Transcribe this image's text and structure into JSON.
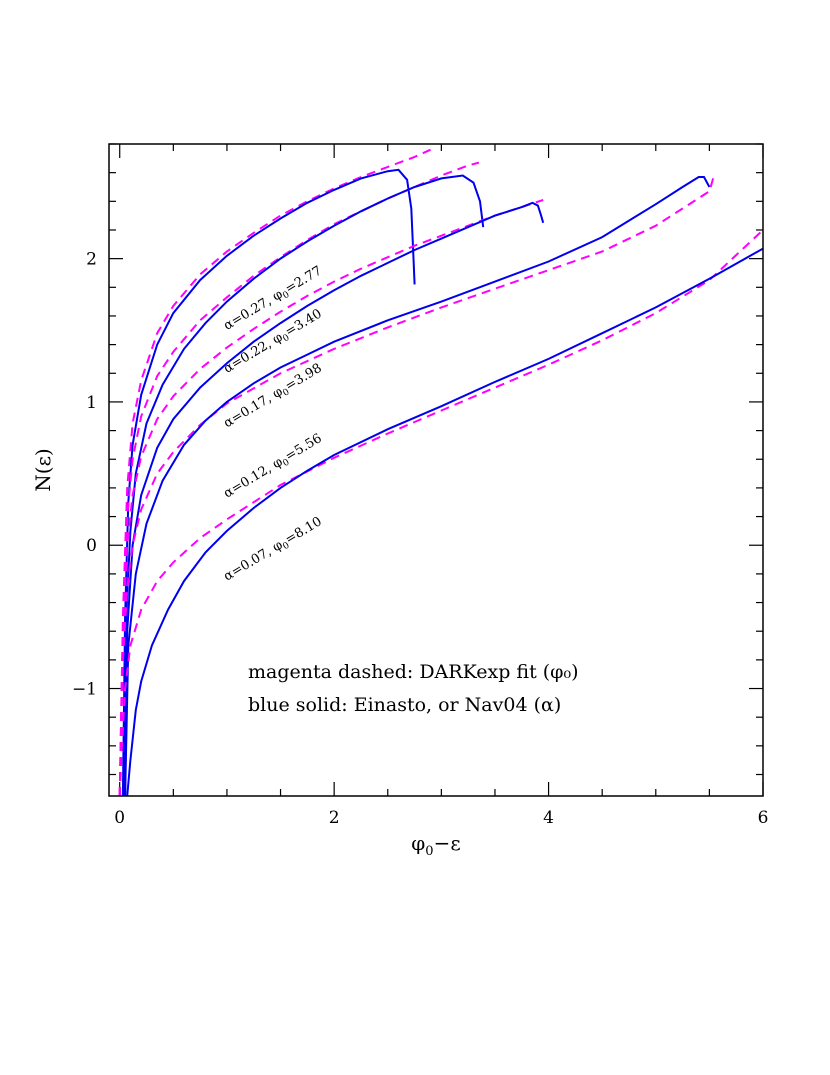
{
  "chart_data": {
    "type": "line",
    "xlabel": {
      "base": "φ",
      "sub": "0",
      "rest": "−ε"
    },
    "ylabel": "N(ε)",
    "xlim": [
      -0.1,
      6.0
    ],
    "ylim": [
      -1.75,
      2.8
    ],
    "x_ticks": [
      0,
      2,
      4,
      6
    ],
    "y_ticks": [
      -1,
      0,
      1,
      2
    ],
    "x_tick_labels": [
      "0",
      "2",
      "4",
      "6"
    ],
    "y_tick_labels": [
      "−1",
      "0",
      "1",
      "2"
    ],
    "x_minor_step": 0.5,
    "y_minor_step": 0.2,
    "colors": {
      "einasto": "#0000ee",
      "darkexp": "#ff00ff"
    },
    "annotations": [
      "magenta dashed: DARKexp fit (φ₀)",
      "blue solid: Einasto, or Nav04 (α)"
    ],
    "series": [
      {
        "label": {
          "alpha": "α=0.27, ",
          "phi": "φ",
          "sub": "0",
          "value": "=2.77"
        },
        "label_anchor": [
          1.0,
          1.5
        ],
        "einasto": [
          [
            0.03,
            -1.75
          ],
          [
            0.05,
            -0.5
          ],
          [
            0.08,
            0.3
          ],
          [
            0.12,
            0.7
          ],
          [
            0.2,
            1.05
          ],
          [
            0.35,
            1.4
          ],
          [
            0.5,
            1.62
          ],
          [
            0.75,
            1.85
          ],
          [
            1.0,
            2.02
          ],
          [
            1.25,
            2.16
          ],
          [
            1.5,
            2.28
          ],
          [
            1.75,
            2.39
          ],
          [
            2.0,
            2.48
          ],
          [
            2.25,
            2.56
          ],
          [
            2.5,
            2.61
          ],
          [
            2.6,
            2.62
          ],
          [
            2.68,
            2.55
          ],
          [
            2.72,
            2.35
          ],
          [
            2.74,
            2.0
          ],
          [
            2.75,
            1.82
          ]
        ],
        "darkexp": [
          [
            0.0,
            -1.75
          ],
          [
            0.03,
            -0.5
          ],
          [
            0.07,
            0.4
          ],
          [
            0.12,
            0.85
          ],
          [
            0.2,
            1.15
          ],
          [
            0.35,
            1.48
          ],
          [
            0.5,
            1.67
          ],
          [
            0.75,
            1.89
          ],
          [
            1.0,
            2.05
          ],
          [
            1.25,
            2.18
          ],
          [
            1.5,
            2.3
          ],
          [
            1.75,
            2.4
          ],
          [
            2.0,
            2.49
          ],
          [
            2.25,
            2.57
          ],
          [
            2.5,
            2.64
          ],
          [
            2.75,
            2.71
          ],
          [
            2.9,
            2.76
          ]
        ]
      },
      {
        "label": {
          "alpha": "α=0.22, ",
          "phi": "φ",
          "sub": "0",
          "value": "=3.40"
        },
        "label_anchor": [
          1.0,
          1.2
        ],
        "einasto": [
          [
            0.04,
            -1.75
          ],
          [
            0.06,
            -0.5
          ],
          [
            0.1,
            0.1
          ],
          [
            0.15,
            0.5
          ],
          [
            0.25,
            0.85
          ],
          [
            0.4,
            1.12
          ],
          [
            0.6,
            1.37
          ],
          [
            0.8,
            1.55
          ],
          [
            1.0,
            1.7
          ],
          [
            1.25,
            1.86
          ],
          [
            1.5,
            2.0
          ],
          [
            1.75,
            2.12
          ],
          [
            2.0,
            2.23
          ],
          [
            2.25,
            2.33
          ],
          [
            2.5,
            2.42
          ],
          [
            2.75,
            2.5
          ],
          [
            3.0,
            2.56
          ],
          [
            3.2,
            2.58
          ],
          [
            3.3,
            2.53
          ],
          [
            3.36,
            2.4
          ],
          [
            3.39,
            2.22
          ]
        ],
        "darkexp": [
          [
            0.0,
            -1.75
          ],
          [
            0.03,
            -0.6
          ],
          [
            0.07,
            0.2
          ],
          [
            0.12,
            0.6
          ],
          [
            0.2,
            0.9
          ],
          [
            0.35,
            1.18
          ],
          [
            0.5,
            1.35
          ],
          [
            0.75,
            1.57
          ],
          [
            1.0,
            1.73
          ],
          [
            1.25,
            1.88
          ],
          [
            1.5,
            2.01
          ],
          [
            1.75,
            2.13
          ],
          [
            2.0,
            2.24
          ],
          [
            2.25,
            2.33
          ],
          [
            2.5,
            2.42
          ],
          [
            2.75,
            2.5
          ],
          [
            3.0,
            2.58
          ],
          [
            3.25,
            2.65
          ],
          [
            3.35,
            2.67
          ]
        ]
      },
      {
        "label": {
          "alpha": "α=0.17, ",
          "phi": "φ",
          "sub": "0",
          "value": "=3.98"
        },
        "label_anchor": [
          1.0,
          0.82
        ],
        "einasto": [
          [
            0.05,
            -1.75
          ],
          [
            0.07,
            -0.6
          ],
          [
            0.12,
            0.0
          ],
          [
            0.2,
            0.35
          ],
          [
            0.35,
            0.68
          ],
          [
            0.5,
            0.88
          ],
          [
            0.75,
            1.1
          ],
          [
            1.0,
            1.27
          ],
          [
            1.25,
            1.42
          ],
          [
            1.5,
            1.55
          ],
          [
            1.75,
            1.67
          ],
          [
            2.0,
            1.78
          ],
          [
            2.25,
            1.88
          ],
          [
            2.5,
            1.97
          ],
          [
            2.75,
            2.06
          ],
          [
            3.0,
            2.14
          ],
          [
            3.25,
            2.22
          ],
          [
            3.5,
            2.3
          ],
          [
            3.75,
            2.36
          ],
          [
            3.85,
            2.39
          ],
          [
            3.9,
            2.37
          ],
          [
            3.93,
            2.3
          ],
          [
            3.95,
            2.25
          ]
        ],
        "darkexp": [
          [
            0.0,
            -1.75
          ],
          [
            0.03,
            -0.6
          ],
          [
            0.07,
            0.0
          ],
          [
            0.12,
            0.35
          ],
          [
            0.2,
            0.62
          ],
          [
            0.35,
            0.88
          ],
          [
            0.5,
            1.04
          ],
          [
            0.75,
            1.23
          ],
          [
            1.0,
            1.38
          ],
          [
            1.25,
            1.51
          ],
          [
            1.5,
            1.63
          ],
          [
            1.75,
            1.74
          ],
          [
            2.0,
            1.84
          ],
          [
            2.25,
            1.93
          ],
          [
            2.5,
            2.01
          ],
          [
            2.75,
            2.09
          ],
          [
            3.0,
            2.16
          ],
          [
            3.25,
            2.23
          ],
          [
            3.5,
            2.3
          ],
          [
            3.75,
            2.36
          ],
          [
            3.95,
            2.41
          ]
        ]
      },
      {
        "label": {
          "alpha": "α=0.12, ",
          "phi": "φ",
          "sub": "0",
          "value": "=5.56"
        },
        "label_anchor": [
          1.0,
          0.33
        ],
        "einasto": [
          [
            0.05,
            -1.75
          ],
          [
            0.08,
            -0.7
          ],
          [
            0.15,
            -0.2
          ],
          [
            0.25,
            0.15
          ],
          [
            0.4,
            0.45
          ],
          [
            0.6,
            0.7
          ],
          [
            0.8,
            0.87
          ],
          [
            1.0,
            1.0
          ],
          [
            1.25,
            1.13
          ],
          [
            1.5,
            1.24
          ],
          [
            1.75,
            1.33
          ],
          [
            2.0,
            1.42
          ],
          [
            2.5,
            1.57
          ],
          [
            3.0,
            1.7
          ],
          [
            3.5,
            1.84
          ],
          [
            4.0,
            1.98
          ],
          [
            4.5,
            2.15
          ],
          [
            5.0,
            2.38
          ],
          [
            5.25,
            2.5
          ],
          [
            5.4,
            2.57
          ],
          [
            5.45,
            2.57
          ],
          [
            5.5,
            2.5
          ]
        ],
        "darkexp": [
          [
            0.0,
            -1.75
          ],
          [
            0.03,
            -0.8
          ],
          [
            0.07,
            -0.3
          ],
          [
            0.12,
            0.0
          ],
          [
            0.2,
            0.25
          ],
          [
            0.35,
            0.5
          ],
          [
            0.5,
            0.65
          ],
          [
            0.75,
            0.84
          ],
          [
            1.0,
            0.99
          ],
          [
            1.5,
            1.2
          ],
          [
            2.0,
            1.37
          ],
          [
            2.5,
            1.52
          ],
          [
            3.0,
            1.66
          ],
          [
            3.5,
            1.79
          ],
          [
            4.0,
            1.92
          ],
          [
            4.5,
            2.05
          ],
          [
            5.0,
            2.23
          ],
          [
            5.25,
            2.35
          ],
          [
            5.5,
            2.47
          ],
          [
            5.55,
            2.6
          ]
        ]
      },
      {
        "label": {
          "alpha": "α=0.07, ",
          "phi": "φ",
          "sub": "0",
          "value": "=8.10"
        },
        "label_anchor": [
          1.0,
          -0.25
        ],
        "einasto": [
          [
            0.07,
            -1.75
          ],
          [
            0.1,
            -1.5
          ],
          [
            0.15,
            -1.15
          ],
          [
            0.2,
            -0.95
          ],
          [
            0.3,
            -0.7
          ],
          [
            0.45,
            -0.45
          ],
          [
            0.6,
            -0.25
          ],
          [
            0.8,
            -0.05
          ],
          [
            1.0,
            0.1
          ],
          [
            1.25,
            0.26
          ],
          [
            1.5,
            0.4
          ],
          [
            1.75,
            0.52
          ],
          [
            2.0,
            0.63
          ],
          [
            2.5,
            0.81
          ],
          [
            3.0,
            0.97
          ],
          [
            3.5,
            1.14
          ],
          [
            4.0,
            1.3
          ],
          [
            4.5,
            1.48
          ],
          [
            5.0,
            1.66
          ],
          [
            5.5,
            1.86
          ],
          [
            6.0,
            2.07
          ]
        ],
        "darkexp": [
          [
            0.0,
            -1.75
          ],
          [
            0.02,
            -1.4
          ],
          [
            0.05,
            -1.0
          ],
          [
            0.1,
            -0.7
          ],
          [
            0.2,
            -0.45
          ],
          [
            0.35,
            -0.25
          ],
          [
            0.5,
            -0.12
          ],
          [
            0.75,
            0.05
          ],
          [
            1.0,
            0.18
          ],
          [
            1.25,
            0.3
          ],
          [
            1.5,
            0.42
          ],
          [
            2.0,
            0.61
          ],
          [
            2.5,
            0.78
          ],
          [
            3.0,
            0.94
          ],
          [
            3.5,
            1.1
          ],
          [
            4.0,
            1.26
          ],
          [
            4.5,
            1.43
          ],
          [
            5.0,
            1.62
          ],
          [
            5.5,
            1.85
          ],
          [
            6.0,
            2.2
          ]
        ]
      }
    ]
  }
}
